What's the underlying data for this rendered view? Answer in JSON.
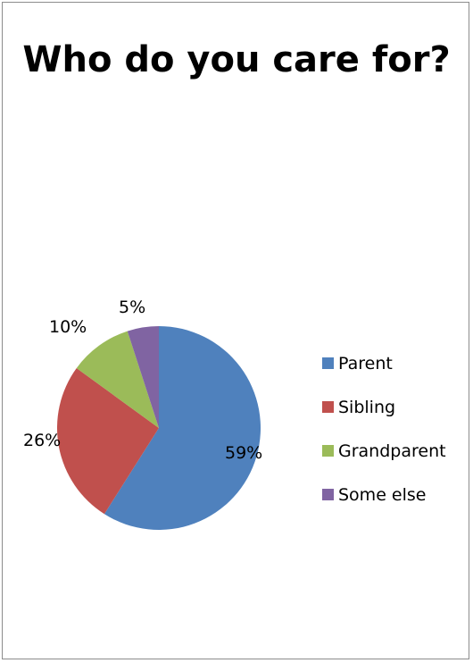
{
  "chart_data": {
    "type": "pie",
    "title": "Who do you care for?",
    "categories": [
      "Parent",
      "Sibling",
      "Grandparent",
      "Some else"
    ],
    "values": [
      59,
      26,
      10,
      5
    ],
    "data_labels": [
      "59%",
      "26%",
      "10%",
      "5%"
    ],
    "colors": [
      "#4f81bd",
      "#c0504d",
      "#9bbb59",
      "#8064a2"
    ],
    "legend_position": "right"
  }
}
